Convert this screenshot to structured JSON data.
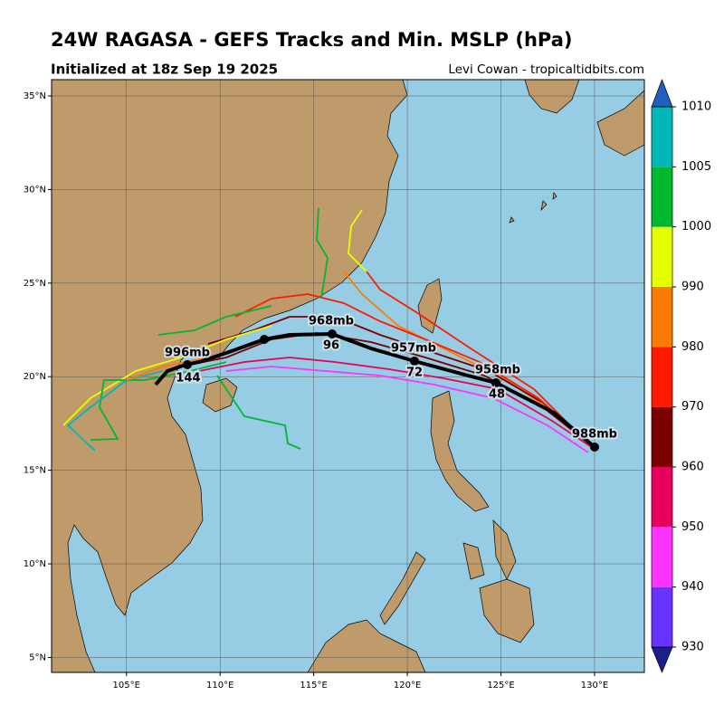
{
  "header": {
    "title": "24W RAGASA - GEFS Tracks and Min. MSLP (hPa)",
    "subtitle": "Initialized at 18z Sep 19 2025",
    "credit": "Levi Cowan - tropicaltidbits.com"
  },
  "map": {
    "xlim": [
      101,
      132.66
    ],
    "ylim": [
      4.2,
      35.87
    ],
    "xticks": [
      {
        "value": 105,
        "label": "105°E"
      },
      {
        "value": 110,
        "label": "110°E"
      },
      {
        "value": 115,
        "label": "115°E"
      },
      {
        "value": 120,
        "label": "120°E"
      },
      {
        "value": 125,
        "label": "125°E"
      },
      {
        "value": 130,
        "label": "130°E"
      }
    ],
    "yticks": [
      {
        "value": 5,
        "label": "5°N"
      },
      {
        "value": 10,
        "label": "10°N"
      },
      {
        "value": 15,
        "label": "15°N"
      },
      {
        "value": 20,
        "label": "20°N"
      },
      {
        "value": 25,
        "label": "25°N"
      },
      {
        "value": 30,
        "label": "30°N"
      },
      {
        "value": 35,
        "label": "35°N"
      }
    ],
    "labels": [
      "988mb",
      "958mb",
      "48",
      "957mb",
      "72",
      "968mb",
      "96",
      "996mb",
      "144"
    ]
  },
  "colorbar": {
    "ticks": [
      930,
      940,
      950,
      960,
      970,
      980,
      990,
      1000,
      1005,
      1010
    ],
    "colors": [
      "#1a1f8a",
      "#6633ff",
      "#ff33ff",
      "#e8005e",
      "#7a0000",
      "#ff1a00",
      "#ff7a00",
      "#e6ff00",
      "#00b830",
      "#00b8b8",
      "#1f5fc0"
    ]
  }
}
